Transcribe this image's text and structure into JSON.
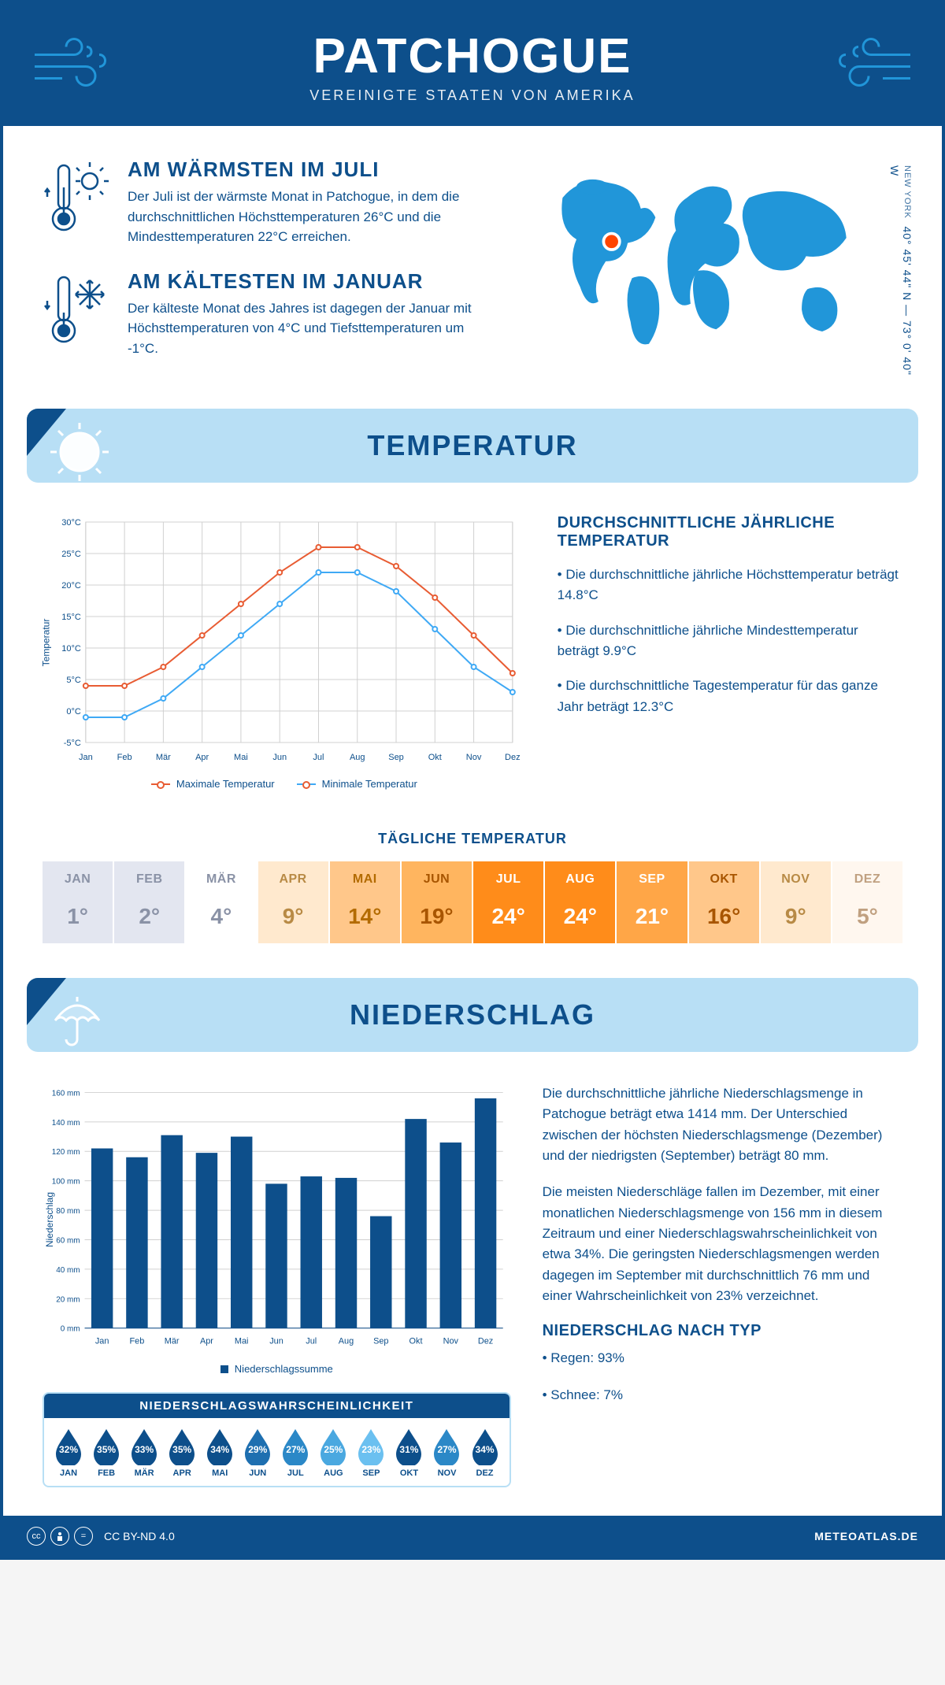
{
  "header": {
    "title": "PATCHOGUE",
    "subtitle": "VEREINIGTE STAATEN VON AMERIKA"
  },
  "colors": {
    "brand_dark": "#0d4f8b",
    "brand_mid": "#2196d9",
    "brand_light": "#b8dff5",
    "accent_orange": "#e85c33",
    "accent_blue": "#3fa9f5",
    "text": "#0d4f8b",
    "grid": "#d0d0d0"
  },
  "geo": {
    "coords": "40° 45' 44\" N — 73° 0' 40\" W",
    "region": "NEW YORK",
    "marker_color": "#ff4500"
  },
  "facts": {
    "warm": {
      "title": "AM WÄRMSTEN IM JULI",
      "text": "Der Juli ist der wärmste Monat in Patchogue, in dem die durchschnittlichen Höchsttemperaturen 26°C und die Mindesttemperaturen 22°C erreichen."
    },
    "cold": {
      "title": "AM KÄLTESTEN IM JANUAR",
      "text": "Der kälteste Monat des Jahres ist dagegen der Januar mit Höchsttemperaturen von 4°C und Tiefsttemperaturen um -1°C."
    }
  },
  "sections": {
    "temp": "TEMPERATUR",
    "precip": "NIEDERSCHLAG"
  },
  "temp_chart": {
    "type": "line",
    "months": [
      "Jan",
      "Feb",
      "Mär",
      "Apr",
      "Mai",
      "Jun",
      "Jul",
      "Aug",
      "Sep",
      "Okt",
      "Nov",
      "Dez"
    ],
    "max": [
      4,
      4,
      7,
      12,
      17,
      22,
      26,
      26,
      23,
      18,
      12,
      6
    ],
    "min": [
      -1,
      -1,
      2,
      7,
      12,
      17,
      22,
      22,
      19,
      13,
      7,
      3
    ],
    "max_color": "#e85c33",
    "min_color": "#3fa9f5",
    "grid_color": "#d0d0d0",
    "ylim": [
      -5,
      30
    ],
    "ytick_step": 5,
    "ylabel": "Temperatur",
    "legend_max": "Maximale Temperatur",
    "legend_min": "Minimale Temperatur",
    "line_width": 2,
    "marker_radius": 3
  },
  "temp_stats": {
    "title": "DURCHSCHNITTLICHE JÄHRLICHE TEMPERATUR",
    "b1": "• Die durchschnittliche jährliche Höchsttemperatur beträgt 14.8°C",
    "b2": "• Die durchschnittliche jährliche Mindesttemperatur beträgt 9.9°C",
    "b3": "• Die durchschnittliche Tagestemperatur für das ganze Jahr beträgt 12.3°C"
  },
  "daily": {
    "title": "TÄGLICHE TEMPERATUR",
    "months": [
      "JAN",
      "FEB",
      "MÄR",
      "APR",
      "MAI",
      "JUN",
      "JUL",
      "AUG",
      "SEP",
      "OKT",
      "NOV",
      "DEZ"
    ],
    "vals": [
      "1°",
      "2°",
      "4°",
      "9°",
      "14°",
      "19°",
      "24°",
      "24°",
      "21°",
      "16°",
      "9°",
      "5°"
    ],
    "bg": [
      "#e3e6f0",
      "#e3e6f0",
      "#ffffff",
      "#ffe9ce",
      "#ffc78a",
      "#ffb55f",
      "#ff8c1a",
      "#ff8c1a",
      "#ffa647",
      "#ffc78a",
      "#ffe9ce",
      "#fff7ef"
    ],
    "fg": [
      "#8a92a6",
      "#8a92a6",
      "#8a92a6",
      "#b88a45",
      "#b36b00",
      "#a85500",
      "#ffffff",
      "#ffffff",
      "#ffffff",
      "#a85500",
      "#b88a45",
      "#c0a080"
    ]
  },
  "precip_chart": {
    "type": "bar",
    "months": [
      "Jan",
      "Feb",
      "Mär",
      "Apr",
      "Mai",
      "Jun",
      "Jul",
      "Aug",
      "Sep",
      "Okt",
      "Nov",
      "Dez"
    ],
    "values": [
      122,
      116,
      131,
      119,
      130,
      98,
      103,
      102,
      76,
      142,
      126,
      156
    ],
    "bar_color": "#0d4f8b",
    "grid_color": "#d0d0d0",
    "ylim": [
      0,
      160
    ],
    "ytick_step": 20,
    "ylabel": "Niederschlag",
    "y_unit": "mm",
    "legend": "Niederschlagssumme"
  },
  "precip_text": {
    "p1": "Die durchschnittliche jährliche Niederschlagsmenge in Patchogue beträgt etwa 1414 mm. Der Unterschied zwischen der höchsten Niederschlagsmenge (Dezember) und der niedrigsten (September) beträgt 80 mm.",
    "p2": "Die meisten Niederschläge fallen im Dezember, mit einer monatlichen Niederschlagsmenge von 156 mm in diesem Zeitraum und einer Niederschlagswahrscheinlichkeit von etwa 34%. Die geringsten Niederschlagsmengen werden dagegen im September mit durchschnittlich 76 mm und einer Wahrscheinlichkeit von 23% verzeichnet.",
    "type_title": "NIEDERSCHLAG NACH TYP",
    "type1": "• Regen: 93%",
    "type2": "• Schnee: 7%"
  },
  "prob": {
    "title": "NIEDERSCHLAGSWAHRSCHEINLICHKEIT",
    "months": [
      "JAN",
      "FEB",
      "MÄR",
      "APR",
      "MAI",
      "JUN",
      "JUL",
      "AUG",
      "SEP",
      "OKT",
      "NOV",
      "DEZ"
    ],
    "pct": [
      "32%",
      "35%",
      "33%",
      "35%",
      "34%",
      "29%",
      "27%",
      "25%",
      "23%",
      "31%",
      "27%",
      "34%"
    ],
    "colors": [
      "#0d4f8b",
      "#0d4f8b",
      "#0d4f8b",
      "#0d4f8b",
      "#0d4f8b",
      "#1e6fb0",
      "#2b88c7",
      "#4aa8e0",
      "#6bc0f0",
      "#0d4f8b",
      "#2b88c7",
      "#0d4f8b"
    ]
  },
  "footer": {
    "license": "CC BY-ND 4.0",
    "site": "METEOATLAS.DE"
  }
}
